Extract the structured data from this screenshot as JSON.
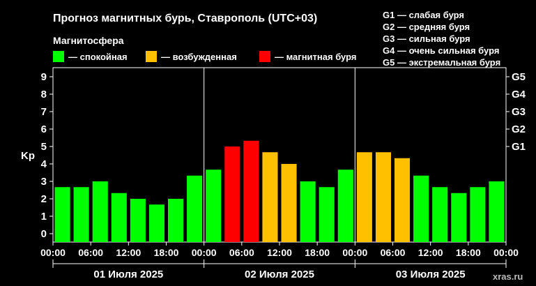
{
  "title": "Прогноз магнитных бурь, Ставрополь (UTC+03)",
  "magnetosphere_label": "Магнитосфера",
  "legend": [
    {
      "color": "#00ff00",
      "label": "— спокойная"
    },
    {
      "color": "#ffc000",
      "label": "— возбужденная"
    },
    {
      "color": "#ff0000",
      "label": "— магнитная буря"
    }
  ],
  "g_scale": [
    "G1 — слабая буря",
    "G2 — средняя буря",
    "G3 — сильная буря",
    "G4 — очень сильная буря",
    "G5 — экстремальная буря"
  ],
  "watermark": "xras.ru",
  "chart_data": {
    "type": "bar",
    "ylabel": "Kp",
    "ylim": [
      0,
      9
    ],
    "yticks": [
      0,
      1,
      2,
      3,
      4,
      5,
      6,
      7,
      8,
      9
    ],
    "right_ticks": [
      {
        "value": 5,
        "label": "G1"
      },
      {
        "value": 6,
        "label": "G2"
      },
      {
        "value": 7,
        "label": "G3"
      },
      {
        "value": 8,
        "label": "G4"
      },
      {
        "value": 9,
        "label": "G5"
      }
    ],
    "xticks": [
      "00:00",
      "06:00",
      "12:00",
      "18:00",
      "00:00",
      "06:00",
      "12:00",
      "18:00",
      "00:00",
      "06:00",
      "12:00",
      "18:00",
      "00:00"
    ],
    "days": [
      "01 Июля 2025",
      "02 Июля 2025",
      "03 Июля 2025"
    ],
    "interval_hours": 3,
    "values": [
      2.67,
      2.67,
      3.0,
      2.33,
      2.0,
      1.67,
      2.0,
      3.33,
      3.67,
      5.0,
      5.33,
      4.67,
      4.0,
      3.0,
      2.67,
      3.67,
      4.67,
      4.67,
      4.33,
      3.33,
      2.67,
      2.33,
      2.67,
      3.0
    ],
    "colors": [
      "#00ff00",
      "#00ff00",
      "#00ff00",
      "#00ff00",
      "#00ff00",
      "#00ff00",
      "#00ff00",
      "#00ff00",
      "#00ff00",
      "#ff0000",
      "#ff0000",
      "#ffc000",
      "#ffc000",
      "#00ff00",
      "#00ff00",
      "#00ff00",
      "#ffc000",
      "#ffc000",
      "#ffc000",
      "#00ff00",
      "#00ff00",
      "#00ff00",
      "#00ff00",
      "#00ff00"
    ]
  }
}
